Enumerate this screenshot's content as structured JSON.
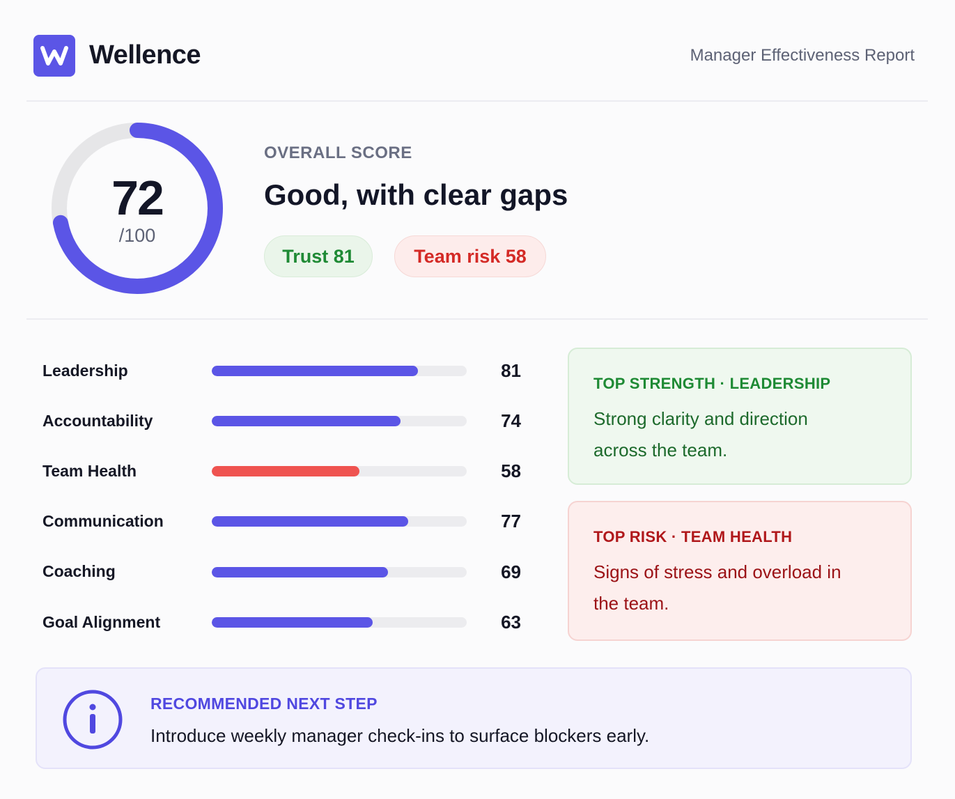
{
  "header": {
    "logo_letter": "W",
    "brand": "Wellence",
    "report_title": "Manager Effectiveness Report"
  },
  "overall": {
    "label": "OVERALL SCORE",
    "score": "72",
    "max": "/100",
    "score_fraction": 0.72,
    "verdict": "Good, with clear gaps",
    "ring_color": "#5b55e6",
    "ring_track_color": "#e6e6e8"
  },
  "pills": {
    "trust": "Trust 81",
    "team_risk": "Team risk 58"
  },
  "metrics": [
    {
      "label": "Leadership",
      "value": "81",
      "score": 81,
      "color": "#5b55e6"
    },
    {
      "label": "Accountability",
      "value": "74",
      "score": 74,
      "color": "#5b55e6"
    },
    {
      "label": "Team Health",
      "value": "58",
      "score": 58,
      "color": "#ef5350"
    },
    {
      "label": "Communication",
      "value": "77",
      "score": 77,
      "color": "#5b55e6"
    },
    {
      "label": "Coaching",
      "value": "69",
      "score": 69,
      "color": "#5b55e6"
    },
    {
      "label": "Goal Alignment",
      "value": "63",
      "score": 63,
      "color": "#5b55e6"
    }
  ],
  "strength_card": {
    "heading": "TOP STRENGTH · LEADERSHIP",
    "text": "Strong clarity and direction across the team."
  },
  "risk_card": {
    "heading": "TOP RISK · TEAM HEALTH",
    "text": "Signs of stress and overload in the team."
  },
  "recommendation": {
    "icon": "info-icon",
    "heading": "RECOMMENDED NEXT STEP",
    "text": "Introduce weekly manager check-ins to surface blockers early."
  }
}
